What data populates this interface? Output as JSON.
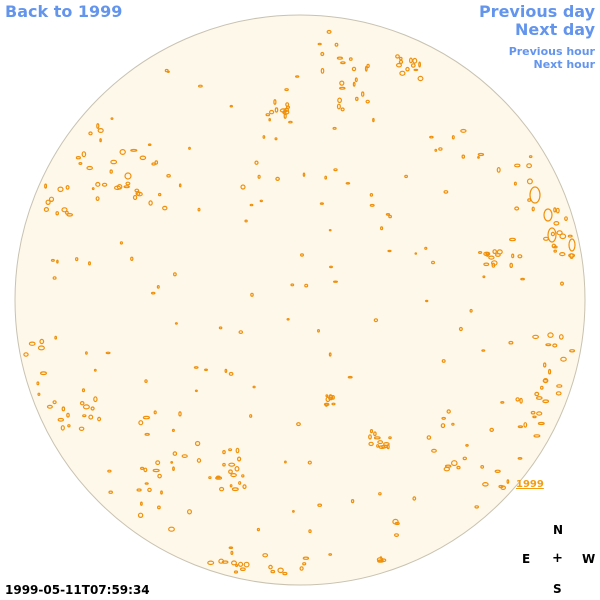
{
  "nav": {
    "back": "Back to 1999",
    "previous_day": "Previous day",
    "next_day": "Next day",
    "previous_hour": "Previous hour",
    "next_hour": "Next hour"
  },
  "compass": {
    "north": "N",
    "east": "E",
    "center": "+",
    "west": "W",
    "south": "S"
  },
  "timestamp": "1999-05-11T07:59:34",
  "year_label": "1999",
  "colors": {
    "disk_fill": "#fdf8ea",
    "disk_edge": "#c9c2b2",
    "contour": "#f0900a",
    "link": "#6495ed"
  }
}
